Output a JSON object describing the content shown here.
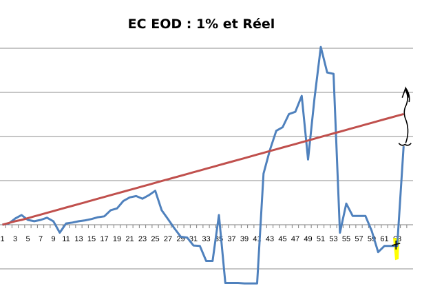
{
  "chart_data": {
    "type": "line",
    "title": "EC EOD : 1% et Réel",
    "xlabel": "",
    "ylabel": "",
    "x": [
      1,
      2,
      3,
      4,
      5,
      6,
      7,
      8,
      9,
      10,
      11,
      12,
      13,
      14,
      15,
      16,
      17,
      18,
      19,
      20,
      21,
      22,
      23,
      24,
      25,
      26,
      27,
      28,
      29,
      30,
      31,
      32,
      33,
      34,
      35,
      36,
      37,
      38,
      39,
      40,
      41,
      42,
      43,
      44,
      45,
      46,
      47,
      48,
      49,
      50,
      51,
      52,
      53,
      54,
      55,
      56,
      57,
      58,
      59,
      60,
      61,
      62,
      63,
      64
    ],
    "x_tick_labels": [
      1,
      3,
      5,
      7,
      9,
      11,
      13,
      15,
      17,
      19,
      21,
      23,
      25,
      27,
      29,
      31,
      33,
      35,
      37,
      39,
      41,
      43,
      45,
      47,
      49,
      51,
      53,
      55,
      57,
      59,
      61,
      63
    ],
    "ylim": [
      -1.5,
      4
    ],
    "y_gridlines": [
      -1,
      0,
      1,
      2,
      3,
      4
    ],
    "y_tick_labels_shown": false,
    "grid": true,
    "series": [
      {
        "color": "#4f81bd",
        "values": [
          0,
          0.03,
          0.14,
          0.22,
          0.11,
          0.08,
          0.11,
          0.16,
          0.08,
          -0.18,
          0.03,
          0.05,
          0.08,
          0.1,
          0.13,
          0.17,
          0.19,
          0.33,
          0.37,
          0.54,
          0.62,
          0.65,
          0.59,
          0.67,
          0.77,
          0.33,
          0.13,
          -0.08,
          -0.27,
          -0.29,
          -0.47,
          -0.48,
          -0.82,
          -0.82,
          0.22,
          -1.32,
          -1.32,
          -1.32,
          -1.33,
          -1.33,
          -1.33,
          1.16,
          1.69,
          2.13,
          2.21,
          2.51,
          2.56,
          2.92,
          1.48,
          2.86,
          4.03,
          3.45,
          3.42,
          -0.18,
          0.48,
          0.2,
          0.2,
          0.2,
          -0.14,
          -0.62,
          -0.48,
          -0.48,
          -0.48,
          1.78
        ]
      },
      {
        "color": "#c0504d",
        "values": [
          0,
          0.04,
          0.08,
          0.11,
          0.15,
          0.19,
          0.23,
          0.27,
          0.31,
          0.35,
          0.39,
          0.43,
          0.47,
          0.51,
          0.55,
          0.59,
          0.63,
          0.67,
          0.71,
          0.75,
          0.79,
          0.83,
          0.87,
          0.91,
          0.95,
          0.99,
          1.03,
          1.07,
          1.11,
          1.15,
          1.19,
          1.23,
          1.27,
          1.31,
          1.35,
          1.39,
          1.43,
          1.47,
          1.51,
          1.55,
          1.59,
          1.63,
          1.67,
          1.71,
          1.75,
          1.79,
          1.83,
          1.87,
          1.91,
          1.95,
          1.99,
          2.03,
          2.07,
          2.11,
          2.15,
          2.19,
          2.23,
          2.27,
          2.31,
          2.35,
          2.39,
          2.43,
          2.47,
          2.51
        ]
      }
    ],
    "annotations": {
      "highlight_color": "#ffff00",
      "handwritten_marks": "black pen arrow, brace and cross near x=63"
    }
  }
}
